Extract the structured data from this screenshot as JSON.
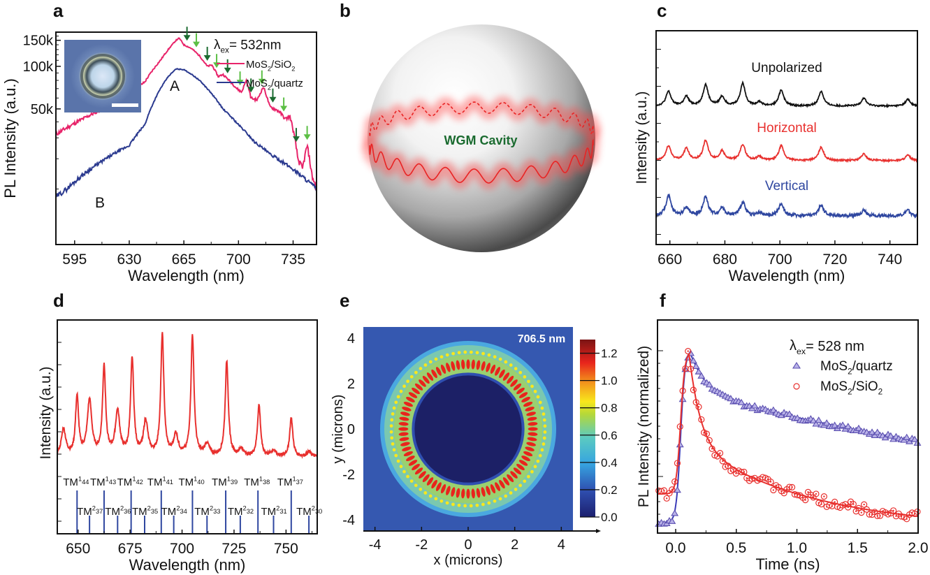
{
  "panel_labels": {
    "a": "a",
    "b": "b",
    "c": "c",
    "d": "d",
    "e": "e",
    "f": "f"
  },
  "colors": {
    "pink": "#e8246a",
    "navy": "#2b3a8f",
    "black": "#111111",
    "red": "#e8302e",
    "blue": "#2f47a0",
    "dark_green": "#1b6b30",
    "light_green": "#5cbf45",
    "triangle": "#5b4fb0",
    "circle": "#e8302e"
  },
  "chart_data": [
    {
      "id": "a",
      "type": "line",
      "title": "",
      "xlabel": "Wavelength (nm)",
      "ylabel": "PL Intensity (a.u.)",
      "xlim": [
        583,
        750
      ],
      "ylim": [
        0,
        170000
      ],
      "yscale": "log-like",
      "x_ticks": [
        595,
        630,
        665,
        700,
        735
      ],
      "y_ticks": [
        {
          "value": 50000,
          "label": "50k"
        },
        {
          "value": 100000,
          "label": "100k"
        },
        {
          "value": 150000,
          "label": "150k"
        }
      ],
      "legend_title": "λex= 532nm",
      "legend": [
        "MoS2/SiO2",
        "MoS2/quartz"
      ],
      "legend_placement": "top-right",
      "annotations": [
        "A",
        "B"
      ],
      "inset": "optical micrograph of microsphere with scale bar",
      "series": [
        {
          "name": "MoS2/SiO2",
          "color_key": "pink",
          "x": [
            583,
            590,
            600,
            610,
            620,
            630,
            640,
            650,
            655,
            660,
            662,
            665,
            670,
            675,
            680,
            683,
            687,
            690,
            695,
            699,
            702,
            705,
            708,
            712,
            716,
            720,
            723,
            726,
            730,
            733,
            736,
            738,
            741,
            744,
            747,
            750
          ],
          "y": [
            32,
            36,
            42,
            48,
            55,
            64,
            78,
            110,
            130,
            150,
            155,
            140,
            132,
            118,
            100,
            102,
            85,
            88,
            78,
            70,
            66,
            80,
            60,
            58,
            72,
            52,
            50,
            48,
            42,
            44,
            30,
            20,
            16,
            26,
            14,
            10
          ]
        },
        {
          "name": "MoS2/quartz",
          "color_key": "navy",
          "x": [
            583,
            590,
            600,
            610,
            620,
            630,
            640,
            650,
            655,
            660,
            665,
            670,
            675,
            680,
            685,
            690,
            700,
            710,
            720,
            730,
            740,
            750
          ],
          "y": [
            8,
            10,
            14,
            18,
            22,
            26,
            38,
            70,
            85,
            96,
            95,
            88,
            80,
            70,
            60,
            50,
            38,
            28,
            22,
            18,
            14,
            10
          ]
        }
      ],
      "mode_arrows": [
        {
          "x": 667,
          "shade": "dark"
        },
        {
          "x": 673,
          "shade": "light"
        },
        {
          "x": 680,
          "shade": "dark"
        },
        {
          "x": 686,
          "shade": "light"
        },
        {
          "x": 693,
          "shade": "dark"
        },
        {
          "x": 701,
          "shade": "light"
        },
        {
          "x": 708,
          "shade": "dark"
        },
        {
          "x": 715,
          "shade": "light"
        },
        {
          "x": 722,
          "shade": "dark"
        },
        {
          "x": 729,
          "shade": "light"
        },
        {
          "x": 737,
          "shade": "dark"
        },
        {
          "x": 744,
          "shade": "light"
        }
      ]
    },
    {
      "id": "c",
      "type": "line",
      "xlabel": "Wavelength (nm)",
      "ylabel": "Intensity (a.u.)",
      "xlim": [
        655,
        750
      ],
      "x_ticks": [
        660,
        680,
        700,
        720,
        740
      ],
      "peaks_nm": [
        659.5,
        666,
        673,
        679,
        686.5,
        692.5,
        700.5,
        715,
        730.5,
        746.5
      ],
      "series": [
        {
          "name": "Unpolarized",
          "color_key": "black",
          "peak_heights": [
            0.55,
            0.35,
            0.8,
            0.35,
            0.85,
            0.15,
            0.6,
            0.55,
            0.3,
            0.25
          ]
        },
        {
          "name": "Horizontal",
          "color_key": "red",
          "peak_heights": [
            0.55,
            0.45,
            0.75,
            0.35,
            0.6,
            0.15,
            0.55,
            0.5,
            0.25,
            0.2
          ]
        },
        {
          "name": "Vertical",
          "color_key": "blue",
          "peak_heights": [
            0.75,
            0.3,
            0.7,
            0.3,
            0.5,
            0.1,
            0.45,
            0.4,
            0.2,
            0.2
          ]
        }
      ]
    },
    {
      "id": "d",
      "type": "line",
      "xlabel": "Wavelength (nm)",
      "ylabel": "Intensity (a.u.)",
      "xlim": [
        640,
        765
      ],
      "x_ticks": [
        650,
        675,
        700,
        725,
        750
      ],
      "series": [
        {
          "name": "spectrum",
          "color_key": "red",
          "peaks_nm": [
            643,
            649.5,
            655.5,
            662.5,
            669,
            676,
            682.5,
            690.5,
            697,
            705,
            712,
            721.5,
            728.5,
            737,
            744,
            752.5,
            761
          ],
          "peak_heights": [
            0.22,
            0.48,
            0.45,
            0.73,
            0.36,
            0.8,
            0.28,
            0.99,
            0.17,
            0.99,
            0.1,
            0.78,
            0.06,
            0.42,
            0.05,
            0.32,
            0.04
          ]
        }
      ],
      "mode_labels_TM1": [
        {
          "label": "TM",
          "sup": "1",
          "sub": "44",
          "x": 649.5
        },
        {
          "label": "TM",
          "sup": "1",
          "sub": "43",
          "x": 662.5
        },
        {
          "label": "TM",
          "sup": "1",
          "sub": "42",
          "x": 675.5
        },
        {
          "label": "TM",
          "sup": "1",
          "sub": "41",
          "x": 690
        },
        {
          "label": "TM",
          "sup": "1",
          "sub": "40",
          "x": 705
        },
        {
          "label": "TM",
          "sup": "1",
          "sub": "39",
          "x": 721
        },
        {
          "label": "TM",
          "sup": "1",
          "sub": "38",
          "x": 736.5
        },
        {
          "label": "TM",
          "sup": "1",
          "sub": "37",
          "x": 752.5
        }
      ],
      "mode_labels_TM2": [
        {
          "label": "TM",
          "sup": "2",
          "sub": "37",
          "x": 655.5
        },
        {
          "label": "TM",
          "sup": "2",
          "sub": "36",
          "x": 669
        },
        {
          "label": "TM",
          "sup": "2",
          "sub": "35",
          "x": 682
        },
        {
          "label": "TM",
          "sup": "2",
          "sub": "34",
          "x": 696
        },
        {
          "label": "TM",
          "sup": "2",
          "sub": "33",
          "x": 712
        },
        {
          "label": "TM",
          "sup": "2",
          "sub": "32",
          "x": 728
        },
        {
          "label": "TM",
          "sup": "2",
          "sub": "31",
          "x": 744
        },
        {
          "label": "TM",
          "sup": "2",
          "sub": "30",
          "x": 761
        }
      ]
    },
    {
      "id": "e",
      "type": "heatmap",
      "xlabel": "x (microns)",
      "ylabel": "y (microns)",
      "xlim": [
        -4.5,
        4.5
      ],
      "ylim": [
        -4.5,
        4.5
      ],
      "x_ticks": [
        -4,
        -2,
        0,
        2,
        4
      ],
      "y_ticks": [
        -4,
        -2,
        0,
        2,
        4
      ],
      "annotation": "706.5 nm",
      "colorbar_ticks": [
        0.0,
        0.2,
        0.4,
        0.6,
        0.8,
        1.0,
        1.2
      ],
      "colorbar_range": [
        0.0,
        1.3
      ],
      "ring_inner_radius_um": 2.3,
      "ring_outer_radius_um": 3.6,
      "azimuthal_lobes": 40
    },
    {
      "id": "f",
      "type": "scatter",
      "xlabel": "Time (ns)",
      "ylabel": "PL Intensity (normalized)",
      "xlim": [
        -0.15,
        2.0
      ],
      "x_ticks": [
        0.0,
        0.5,
        1.0,
        1.5,
        2.0
      ],
      "legend_title": "λex= 528 nm",
      "legend": [
        "MoS2/quartz",
        "MoS2/SiO2"
      ],
      "legend_placement": "top-right",
      "series": [
        {
          "name": "MoS2/quartz",
          "marker": "triangle",
          "color_key": "triangle",
          "baseline": 0.04,
          "peak_t": 0.12,
          "fast_amp": 0.22,
          "fast_tau": 0.12,
          "slow_amp": 0.76,
          "slow_tau": 4.2
        },
        {
          "name": "MoS2/SiO2",
          "marker": "circle",
          "color_key": "circle",
          "baseline": 0.2,
          "peak_t": 0.11,
          "fast_amp": 0.5,
          "fast_tau": 0.09,
          "slow_amp": 0.48,
          "slow_tau": 1.0
        }
      ]
    }
  ],
  "diagram_b": {
    "label": "WGM Cavity",
    "description": "sphere with whispering-gallery mode ring"
  }
}
